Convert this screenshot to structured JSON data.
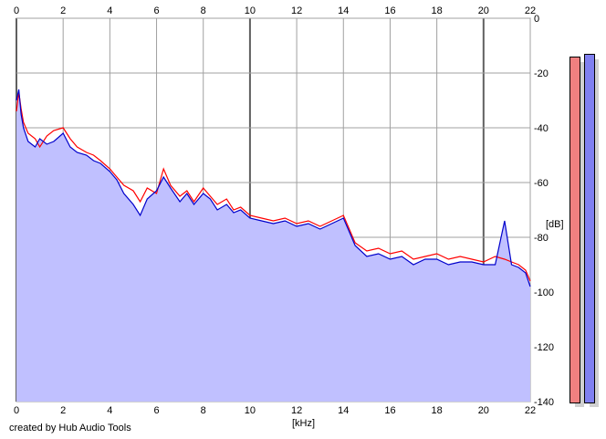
{
  "chart_data": {
    "type": "area",
    "xlabel": "[kHz]",
    "ylabel": "[dB]",
    "xlim": [
      0,
      22
    ],
    "ylim": [
      -140,
      0
    ],
    "x_ticks": [
      0,
      2,
      4,
      6,
      8,
      10,
      12,
      14,
      16,
      18,
      20,
      22
    ],
    "y_ticks": [
      0,
      -20,
      -40,
      -60,
      -80,
      -100,
      -120,
      -140
    ],
    "y_tick_labels": [
      "0",
      "-20",
      "-40",
      "-60",
      "-80",
      "-100",
      "-120",
      "-140"
    ],
    "grid": true,
    "fill_color": "#c0c0ff",
    "series": [
      {
        "color": "#ff0000",
        "x": [
          0,
          0.1,
          0.2,
          0.3,
          0.5,
          0.8,
          1.0,
          1.3,
          1.6,
          2.0,
          2.3,
          2.6,
          3.0,
          3.3,
          3.6,
          4.0,
          4.3,
          4.6,
          5.0,
          5.3,
          5.6,
          6.0,
          6.3,
          6.6,
          7.0,
          7.3,
          7.6,
          8.0,
          8.3,
          8.6,
          9.0,
          9.3,
          9.6,
          10.0,
          10.5,
          11.0,
          11.5,
          12.0,
          12.5,
          13.0,
          13.5,
          14.0,
          14.5,
          15.0,
          15.5,
          16.0,
          16.5,
          17.0,
          17.5,
          18.0,
          18.5,
          19.0,
          19.5,
          20.0,
          20.5,
          20.9,
          21.2,
          21.5,
          21.8,
          22.0
        ],
        "values": [
          -34,
          -27,
          -33,
          -38,
          -42,
          -44,
          -47,
          -43,
          -41,
          -40,
          -44,
          -47,
          -49,
          -50,
          -52,
          -55,
          -58,
          -61,
          -63,
          -67,
          -62,
          -64,
          -55,
          -61,
          -65,
          -63,
          -67,
          -62,
          -65,
          -68,
          -66,
          -70,
          -69,
          -72,
          -73,
          -74,
          -73,
          -75,
          -74,
          -76,
          -74,
          -72,
          -82,
          -85,
          -84,
          -86,
          -85,
          -88,
          -87,
          -86,
          -88,
          -87,
          -88,
          -89,
          -87,
          -88,
          -89,
          -90,
          -92,
          -96
        ]
      },
      {
        "color": "#0000cc",
        "x": [
          0,
          0.1,
          0.2,
          0.3,
          0.5,
          0.8,
          1.0,
          1.3,
          1.6,
          2.0,
          2.3,
          2.6,
          3.0,
          3.3,
          3.6,
          4.0,
          4.3,
          4.6,
          5.0,
          5.3,
          5.6,
          6.0,
          6.3,
          6.6,
          7.0,
          7.3,
          7.6,
          8.0,
          8.3,
          8.6,
          9.0,
          9.3,
          9.6,
          10.0,
          10.5,
          11.0,
          11.5,
          12.0,
          12.5,
          13.0,
          13.5,
          14.0,
          14.5,
          15.0,
          15.5,
          16.0,
          16.5,
          17.0,
          17.5,
          18.0,
          18.5,
          19.0,
          19.5,
          20.0,
          20.5,
          20.9,
          21.2,
          21.5,
          21.8,
          22.0
        ],
        "values": [
          -30,
          -26,
          -35,
          -40,
          -45,
          -47,
          -44,
          -46,
          -45,
          -42,
          -47,
          -49,
          -50,
          -52,
          -53,
          -56,
          -59,
          -64,
          -68,
          -72,
          -66,
          -63,
          -58,
          -62,
          -67,
          -64,
          -68,
          -64,
          -66,
          -70,
          -68,
          -71,
          -70,
          -73,
          -74,
          -75,
          -74,
          -76,
          -75,
          -77,
          -75,
          -73,
          -83,
          -87,
          -86,
          -88,
          -87,
          -90,
          -88,
          -88,
          -90,
          -89,
          -89,
          -90,
          -90,
          -74,
          -90,
          -91,
          -93,
          -98
        ]
      }
    ],
    "meters": [
      {
        "color": "#f08080",
        "level": -14
      },
      {
        "color": "#8080f0",
        "level": -13
      }
    ]
  },
  "credit": "created by Hub Audio Tools"
}
